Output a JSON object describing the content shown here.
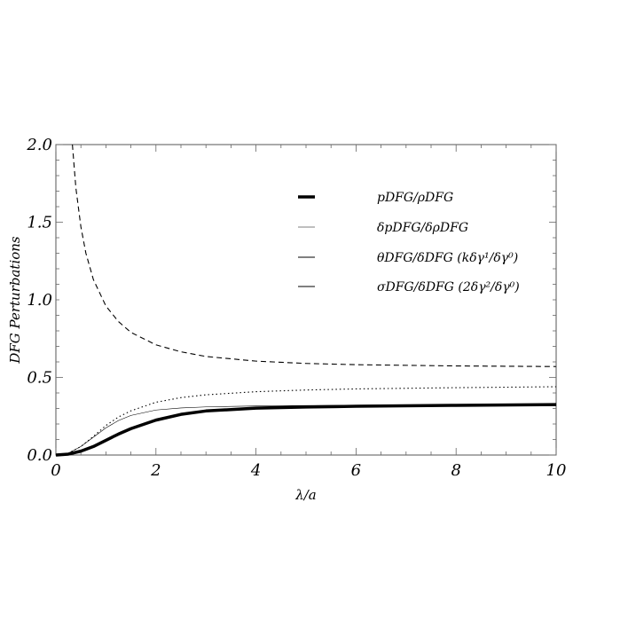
{
  "chart_data": {
    "type": "line",
    "xlabel": "λ/a",
    "ylabel": "DFG Perturbations",
    "xlim": [
      0,
      10
    ],
    "ylim": [
      0,
      2.0
    ],
    "x_ticks": [
      "0",
      "2",
      "4",
      "6",
      "8",
      "10"
    ],
    "y_ticks": [
      "0.0",
      "0.5",
      "1.0",
      "1.5",
      "2.0"
    ],
    "legend_position": "top-right",
    "series": [
      {
        "name": "pDFG/ρDFG",
        "style": "solid-thick",
        "x": [
          0,
          0.25,
          0.5,
          0.75,
          1.0,
          1.25,
          1.5,
          2.0,
          2.5,
          3.0,
          4.0,
          5.0,
          6.0,
          8.0,
          10.0
        ],
        "y": [
          0,
          0.006,
          0.025,
          0.055,
          0.095,
          0.135,
          0.17,
          0.225,
          0.262,
          0.284,
          0.302,
          0.309,
          0.314,
          0.32,
          0.325
        ]
      },
      {
        "name": "δpDFG/δρDFG",
        "style": "solid-thin",
        "x": [
          0,
          0.25,
          0.5,
          0.75,
          1.0,
          1.25,
          1.5,
          2.0,
          2.5,
          3.0,
          4.0,
          5.0,
          6.0,
          8.0,
          10.0
        ],
        "y": [
          0,
          0.012,
          0.055,
          0.115,
          0.175,
          0.222,
          0.255,
          0.29,
          0.303,
          0.31,
          0.316,
          0.319,
          0.321,
          0.324,
          0.326
        ]
      },
      {
        "name": "θDFG/δDFG (kδγ¹/δγ⁰)",
        "style": "dotted",
        "x": [
          0,
          0.25,
          0.5,
          0.75,
          1.0,
          1.25,
          1.5,
          2.0,
          2.5,
          3.0,
          4.0,
          5.0,
          6.0,
          8.0,
          10.0
        ],
        "y": [
          0,
          0.012,
          0.055,
          0.12,
          0.19,
          0.245,
          0.285,
          0.34,
          0.37,
          0.388,
          0.408,
          0.419,
          0.426,
          0.434,
          0.44
        ]
      },
      {
        "name": "σDFG/δDFG (2δγ²/δγ⁰)",
        "style": "dashed",
        "x": [
          0.33,
          0.4,
          0.5,
          0.6,
          0.75,
          1.0,
          1.25,
          1.5,
          2.0,
          2.5,
          3.0,
          4.0,
          5.0,
          6.0,
          8.0,
          10.0
        ],
        "y": [
          2.0,
          1.72,
          1.47,
          1.3,
          1.13,
          0.96,
          0.86,
          0.79,
          0.71,
          0.665,
          0.635,
          0.605,
          0.59,
          0.582,
          0.574,
          0.57
        ]
      }
    ]
  }
}
